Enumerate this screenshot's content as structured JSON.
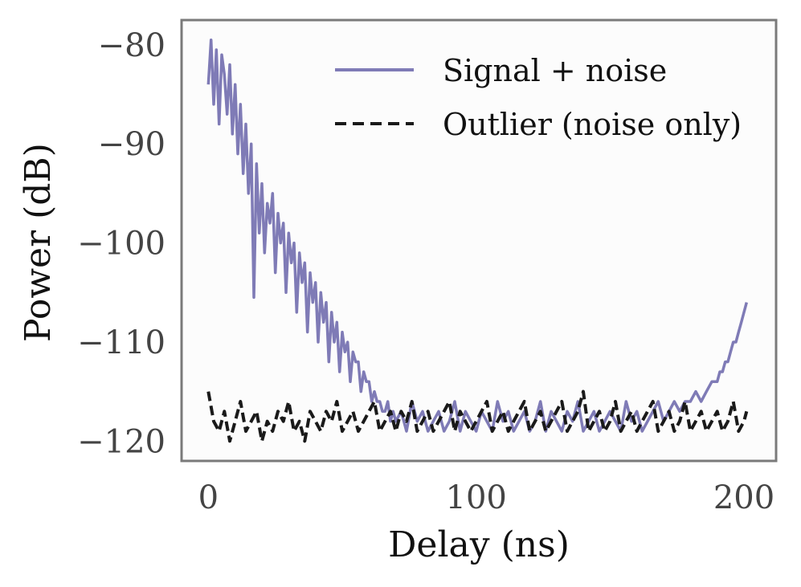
{
  "chart_data": {
    "type": "line",
    "title": "",
    "xlabel": "Delay (ns)",
    "ylabel": "Power (dB)",
    "xlim": [
      -10,
      212
    ],
    "ylim": [
      -122,
      -77.5
    ],
    "xticks": [
      0,
      100,
      200
    ],
    "xtick_labels": [
      "0",
      "100",
      "200"
    ],
    "yticks": [
      -80,
      -90,
      -100,
      -110,
      -120
    ],
    "ytick_labels": [
      "−80",
      "−90",
      "−100",
      "−110",
      "−120"
    ],
    "grid": false,
    "legend_position": "top-right",
    "series": [
      {
        "name": "Signal + noise",
        "color": "#7f7bb6",
        "style": "solid",
        "x": [
          0,
          1,
          2,
          3,
          4,
          5,
          6,
          7,
          8,
          9,
          10,
          11,
          12,
          13,
          14,
          15,
          16,
          17,
          18,
          19,
          20,
          21,
          22,
          23,
          24,
          25,
          26,
          27,
          28,
          29,
          30,
          31,
          32,
          33,
          34,
          35,
          36,
          37,
          38,
          39,
          40,
          41,
          42,
          43,
          44,
          45,
          46,
          47,
          48,
          49,
          50,
          51,
          52,
          53,
          54,
          55,
          56,
          57,
          58,
          59,
          60,
          61,
          62,
          63,
          64,
          65,
          66,
          67,
          68,
          69,
          70,
          72,
          74,
          76,
          78,
          80,
          82,
          84,
          86,
          88,
          90,
          92,
          94,
          96,
          98,
          100,
          102,
          104,
          106,
          108,
          110,
          112,
          114,
          116,
          118,
          120,
          122,
          124,
          126,
          128,
          130,
          132,
          134,
          136,
          138,
          140,
          142,
          144,
          146,
          148,
          150,
          152,
          154,
          156,
          158,
          160,
          162,
          164,
          166,
          168,
          170,
          172,
          174,
          176,
          178,
          180,
          182,
          184,
          186,
          188,
          190,
          191,
          192,
          193,
          194,
          195,
          196,
          197,
          198,
          199,
          200,
          201
        ],
        "values": [
          -84,
          -79.5,
          -86,
          -80.5,
          -88,
          -81,
          -83,
          -87,
          -82,
          -89,
          -84,
          -91,
          -86,
          -93,
          -88,
          -95,
          -90,
          -105.5,
          -92,
          -99,
          -94,
          -101,
          -96,
          -98,
          -95,
          -103,
          -97,
          -100,
          -98,
          -105,
          -99,
          -102,
          -100,
          -107,
          -101,
          -104,
          -102,
          -109,
          -103,
          -106,
          -104,
          -110,
          -105,
          -108,
          -106,
          -112,
          -107,
          -110,
          -108,
          -113,
          -109,
          -111,
          -110,
          -114,
          -111,
          -112,
          -112,
          -115,
          -113,
          -114,
          -114,
          -116,
          -115,
          -116,
          -116,
          -117,
          -117,
          -116,
          -118,
          -117,
          -118,
          -117,
          -119,
          -116,
          -118,
          -117,
          -119,
          -118,
          -117,
          -119,
          -118,
          -116,
          -119,
          -117,
          -118,
          -119,
          -117,
          -118,
          -119,
          -116,
          -118,
          -117,
          -119,
          -118,
          -117,
          -119,
          -118,
          -116,
          -119,
          -117,
          -118,
          -119,
          -117,
          -118,
          -116,
          -119,
          -118,
          -117,
          -119,
          -118,
          -117,
          -118,
          -119,
          -116,
          -118,
          -117,
          -119,
          -118,
          -117,
          -116,
          -118,
          -117,
          -116,
          -117,
          -116,
          -116,
          -115,
          -116,
          -115,
          -114,
          -114,
          -113,
          -113,
          -112,
          -112,
          -111,
          -110,
          -110,
          -109,
          -108,
          -107,
          -106
        ]
      },
      {
        "name": "Outlier (noise only)",
        "color": "#1a1a1a",
        "style": "dashed",
        "x": [
          0,
          2,
          4,
          6,
          8,
          10,
          12,
          14,
          16,
          18,
          20,
          22,
          24,
          26,
          28,
          30,
          32,
          34,
          36,
          38,
          40,
          42,
          44,
          46,
          48,
          50,
          52,
          54,
          56,
          58,
          60,
          62,
          64,
          66,
          68,
          70,
          72,
          74,
          76,
          78,
          80,
          82,
          84,
          86,
          88,
          90,
          92,
          94,
          96,
          98,
          100,
          102,
          104,
          106,
          108,
          110,
          112,
          114,
          116,
          118,
          120,
          122,
          124,
          126,
          128,
          130,
          132,
          134,
          136,
          138,
          140,
          142,
          144,
          146,
          148,
          150,
          152,
          154,
          156,
          158,
          160,
          162,
          164,
          166,
          168,
          170,
          172,
          174,
          176,
          178,
          180,
          182,
          184,
          186,
          188,
          190,
          192,
          194,
          196,
          198,
          200,
          201
        ],
        "values": [
          -115,
          -118,
          -119,
          -117,
          -120,
          -118,
          -116,
          -119,
          -118,
          -117,
          -120,
          -118,
          -119,
          -117,
          -118,
          -116,
          -119,
          -118,
          -120,
          -117,
          -118,
          -119,
          -117,
          -118,
          -116,
          -119,
          -118,
          -117,
          -119,
          -118,
          -117,
          -116,
          -119,
          -118,
          -117,
          -119,
          -117,
          -118,
          -116,
          -119,
          -118,
          -117,
          -119,
          -118,
          -117,
          -116,
          -119,
          -117,
          -118,
          -119,
          -118,
          -117,
          -116,
          -119,
          -118,
          -117,
          -119,
          -118,
          -117,
          -116,
          -119,
          -118,
          -117,
          -119,
          -118,
          -117,
          -116,
          -119,
          -118,
          -117,
          -115,
          -119,
          -118,
          -117,
          -119,
          -118,
          -116,
          -119,
          -118,
          -117,
          -119,
          -118,
          -117,
          -116,
          -119,
          -118,
          -117,
          -119,
          -118,
          -116,
          -119,
          -118,
          -117,
          -119,
          -118,
          -117,
          -119,
          -118,
          -116,
          -119,
          -118,
          -117
        ]
      }
    ]
  }
}
